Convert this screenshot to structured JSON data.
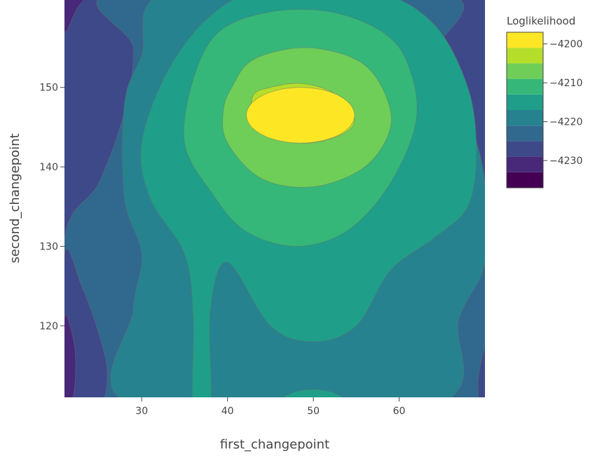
{
  "chart_data": {
    "type": "contour",
    "title": "",
    "xlabel": "first_changepoint",
    "ylabel": "second_changepoint",
    "xlim": [
      21,
      70
    ],
    "ylim": [
      111,
      161
    ],
    "x_ticks": [
      30,
      40,
      50,
      60
    ],
    "y_ticks": [
      120,
      130,
      140,
      150
    ],
    "z_label": "Loglikelihood",
    "z_range": [
      -4237,
      -4197
    ],
    "z_ticks": [
      -4200,
      -4210,
      -4220,
      -4230
    ],
    "contour_step": 5,
    "maximum": {
      "x": 48.5,
      "y": 146.5,
      "z": -4197
    },
    "colorscale": [
      "#440154",
      "#482878",
      "#3e4989",
      "#31688e",
      "#26828e",
      "#1f9e89",
      "#35b779",
      "#6ece58",
      "#b5de2b",
      "#fde725"
    ],
    "grid": false,
    "legend_position": "right"
  }
}
